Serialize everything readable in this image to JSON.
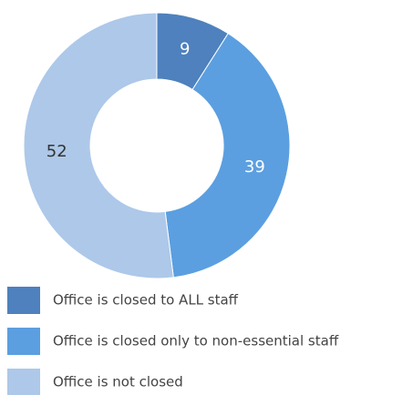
{
  "chart_data": {
    "type": "donut",
    "categories": [
      "Office is closed to ALL staff",
      "Office is closed only to non-essential staff",
      "Office is not closed"
    ],
    "values": [
      9,
      39,
      52
    ],
    "colors": [
      "#4e81bd",
      "#5b9fe0",
      "#adc8e9"
    ],
    "legend": "bottom"
  }
}
